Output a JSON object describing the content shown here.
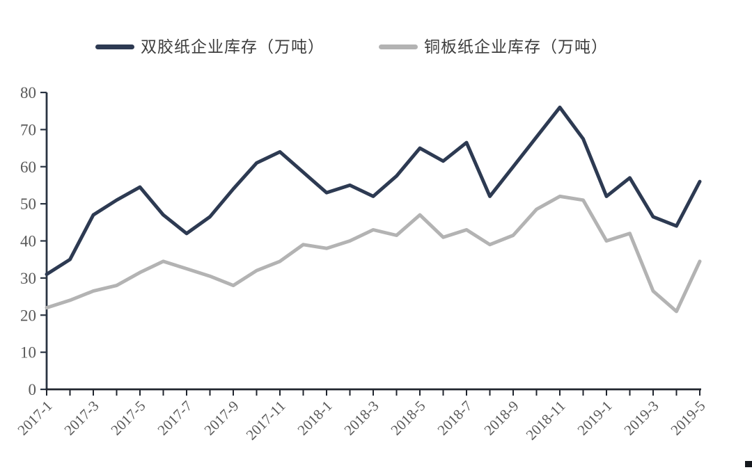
{
  "chart_data": {
    "type": "line",
    "x": [
      "2017-1",
      "2017-2",
      "2017-3",
      "2017-4",
      "2017-5",
      "2017-6",
      "2017-7",
      "2017-8",
      "2017-9",
      "2017-10",
      "2017-11",
      "2017-12",
      "2018-1",
      "2018-2",
      "2018-3",
      "2018-4",
      "2018-5",
      "2018-6",
      "2018-7",
      "2018-8",
      "2018-9",
      "2018-10",
      "2018-11",
      "2018-12",
      "2019-1",
      "2019-2",
      "2019-3",
      "2019-4",
      "2019-5"
    ],
    "x_tick_labels": [
      "2017-1",
      "2017-3",
      "2017-5",
      "2017-7",
      "2017-9",
      "2017-11",
      "2018-1",
      "2018-3",
      "2018-5",
      "2018-7",
      "2018-9",
      "2018-11",
      "2019-1",
      "2019-3",
      "2019-5"
    ],
    "x_tick_label_step": 2,
    "series": [
      {
        "name": "双胶纸企业库存（万吨）",
        "color": "#2d3a52",
        "values": [
          31,
          35,
          47,
          51,
          54.5,
          47,
          42,
          46.5,
          54,
          61,
          64,
          58.5,
          53,
          55,
          52,
          57.5,
          65,
          61.5,
          66.5,
          52,
          60,
          68,
          76,
          67.5,
          52,
          57,
          46.5,
          44,
          56
        ]
      },
      {
        "name": "铜板纸企业库存（万吨）",
        "color": "#b3b3b3",
        "values": [
          22,
          24,
          26.5,
          28,
          31.5,
          34.5,
          32.5,
          30.5,
          28,
          32,
          34.5,
          39,
          38,
          40,
          43,
          41.5,
          47,
          41,
          43,
          39,
          41.5,
          48.5,
          52,
          51,
          40,
          42,
          26.5,
          21,
          34.5
        ]
      }
    ],
    "title": "",
    "xlabel": "",
    "ylabel": "",
    "ylim": [
      0,
      80
    ],
    "y_ticks": [
      0,
      10,
      20,
      30,
      40,
      50,
      60,
      70,
      80
    ],
    "grid": "off",
    "legend_position": "top",
    "axis_color_y": "#2a3442",
    "axis_color_x": "#20252e",
    "tick_label_color": "#595959"
  }
}
